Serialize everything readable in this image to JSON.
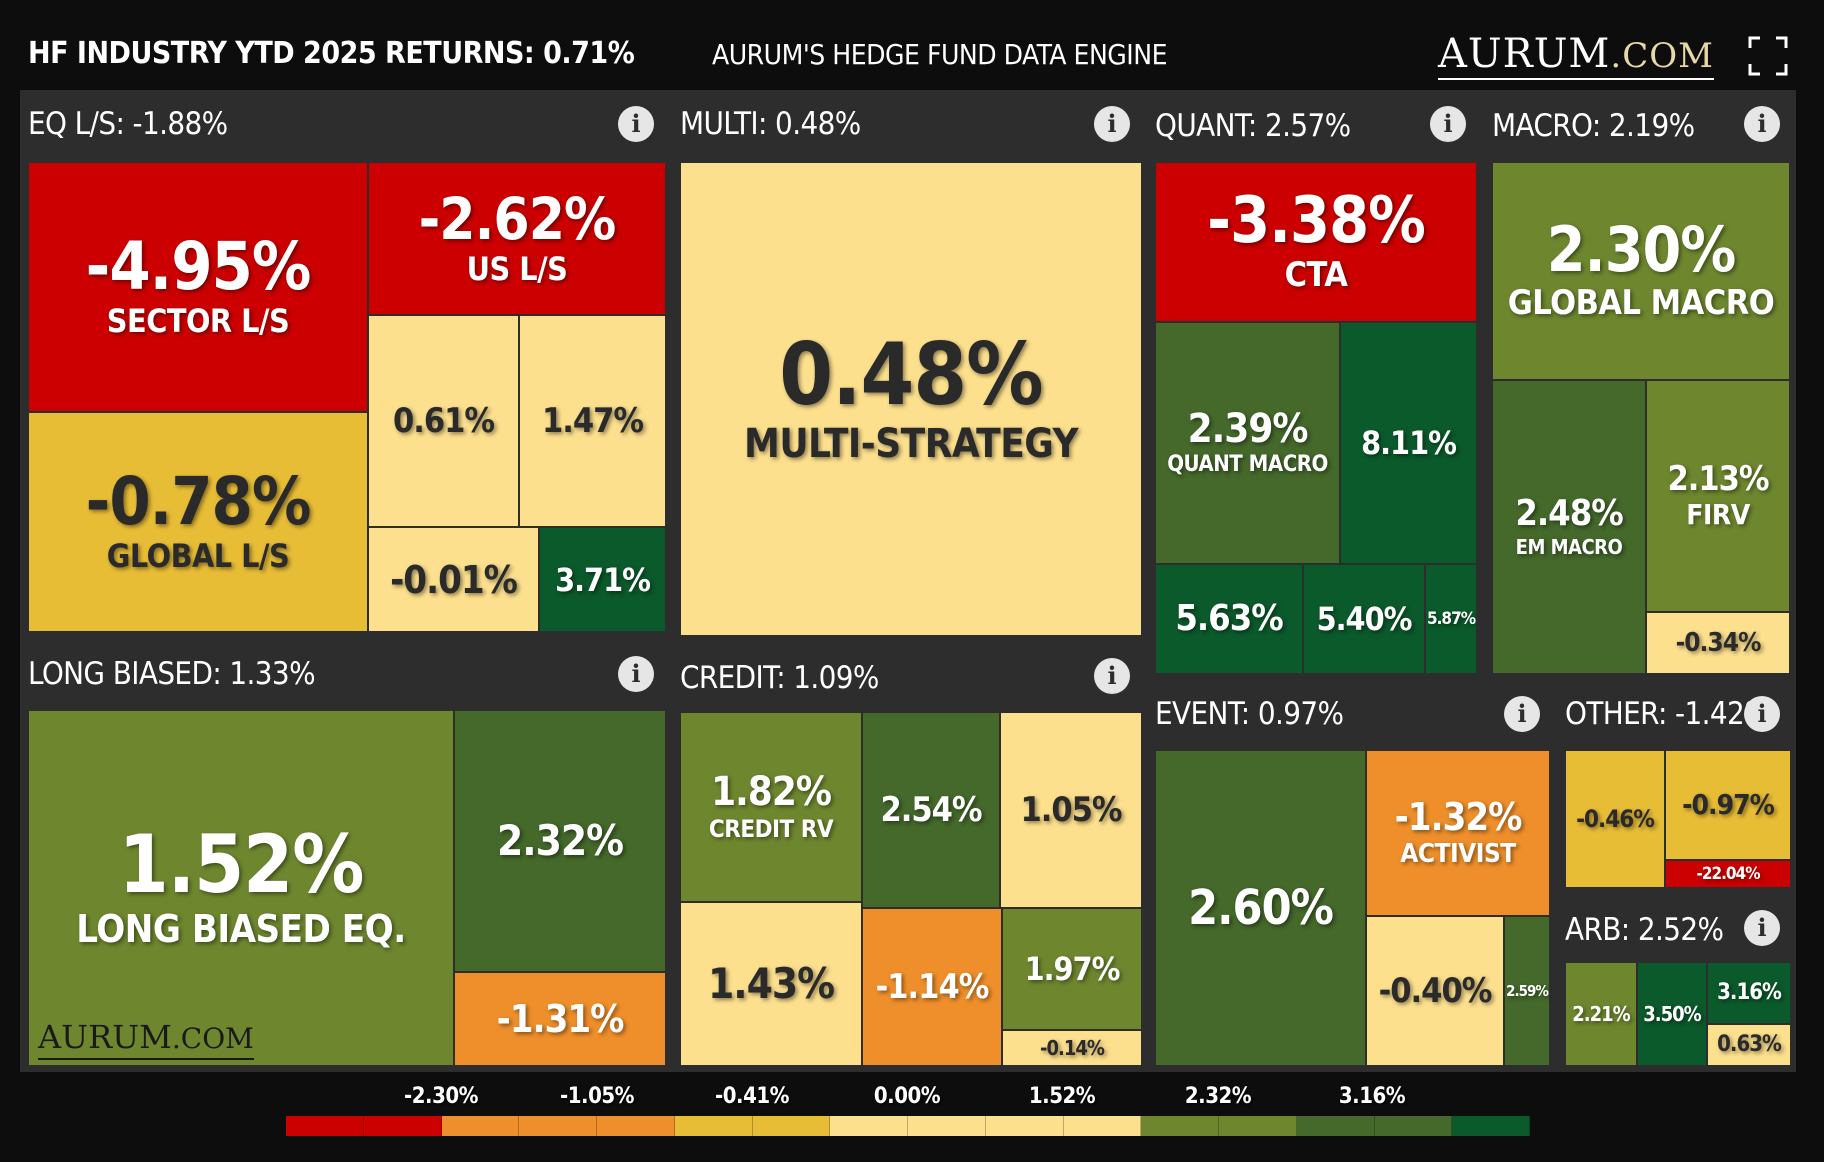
{
  "header": {
    "left_title": "HF INDUSTRY YTD 2025 RETURNS: 0.71%",
    "center_title": "AURUM'S HEDGE FUND DATA ENGINE",
    "logo_main": "AURUM",
    "logo_suffix": ".COM"
  },
  "watermark": {
    "main": "AURUM",
    "suffix": ".COM"
  },
  "colors": {
    "red": "#cc0000",
    "orange": "#ef8f2b",
    "gold": "#e8bd36",
    "pale": "#fde08e",
    "olive": "#6e872f",
    "green": "#44692b",
    "dark_green": "#0b5a2b",
    "panel": "#2d2d2d"
  },
  "chart_data": {
    "type": "treemap",
    "title": "HF INDUSTRY YTD 2025 RETURNS: 0.71%",
    "groups": [
      {
        "name": "EQ L/S",
        "return": "-1.88%",
        "tiles": [
          {
            "value": "-4.95%",
            "label": "SECTOR L/S"
          },
          {
            "value": "-2.62%",
            "label": "US L/S"
          },
          {
            "value": "0.61%",
            "label": ""
          },
          {
            "value": "1.47%",
            "label": ""
          },
          {
            "value": "-0.78%",
            "label": "GLOBAL L/S"
          },
          {
            "value": "-0.01%",
            "label": ""
          },
          {
            "value": "3.71%",
            "label": ""
          }
        ]
      },
      {
        "name": "MULTI",
        "return": "0.48%",
        "tiles": [
          {
            "value": "0.48%",
            "label": "MULTI-STRATEGY"
          }
        ]
      },
      {
        "name": "QUANT",
        "return": "2.57%",
        "tiles": [
          {
            "value": "-3.38%",
            "label": "CTA"
          },
          {
            "value": "2.39%",
            "label": "QUANT MACRO"
          },
          {
            "value": "8.11%",
            "label": ""
          },
          {
            "value": "5.63%",
            "label": ""
          },
          {
            "value": "5.40%",
            "label": ""
          },
          {
            "value": "5.87%",
            "label": ""
          }
        ]
      },
      {
        "name": "MACRO",
        "return": "2.19%",
        "tiles": [
          {
            "value": "2.30%",
            "label": "GLOBAL MACRO"
          },
          {
            "value": "2.48%",
            "label": "EM MACRO"
          },
          {
            "value": "2.13%",
            "label": "FIRV"
          },
          {
            "value": "-0.34%",
            "label": ""
          }
        ]
      },
      {
        "name": "LONG BIASED",
        "return": "1.33%",
        "tiles": [
          {
            "value": "1.52%",
            "label": "LONG BIASED EQ."
          },
          {
            "value": "2.32%",
            "label": ""
          },
          {
            "value": "-1.31%",
            "label": ""
          }
        ]
      },
      {
        "name": "CREDIT",
        "return": "1.09%",
        "tiles": [
          {
            "value": "1.82%",
            "label": "CREDIT RV"
          },
          {
            "value": "2.54%",
            "label": ""
          },
          {
            "value": "1.05%",
            "label": ""
          },
          {
            "value": "1.43%",
            "label": ""
          },
          {
            "value": "-1.14%",
            "label": ""
          },
          {
            "value": "1.97%",
            "label": ""
          },
          {
            "value": "-0.14%",
            "label": ""
          }
        ]
      },
      {
        "name": "EVENT",
        "return": "0.97%",
        "tiles": [
          {
            "value": "2.60%",
            "label": ""
          },
          {
            "value": "-1.32%",
            "label": "ACTIVIST"
          },
          {
            "value": "-0.40%",
            "label": ""
          },
          {
            "value": "2.59%",
            "label": ""
          }
        ]
      },
      {
        "name": "OTHER",
        "return": "-1.42%",
        "tiles": [
          {
            "value": "-0.46%",
            "label": ""
          },
          {
            "value": "-0.97%",
            "label": ""
          },
          {
            "value": "-22.04%",
            "label": ""
          }
        ]
      },
      {
        "name": "ARB",
        "return": "2.52%",
        "tiles": [
          {
            "value": "2.21%",
            "label": ""
          },
          {
            "value": "3.50%",
            "label": ""
          },
          {
            "value": "3.16%",
            "label": ""
          },
          {
            "value": "0.63%",
            "label": ""
          }
        ]
      }
    ],
    "legend": {
      "ticks": [
        "-2.30%",
        "-1.05%",
        "-0.41%",
        "0.00%",
        "1.52%",
        "2.32%",
        "3.16%"
      ],
      "scale_colors": [
        "#cc0000",
        "#cc0000",
        "#ef8f2b",
        "#ef8f2b",
        "#ef8f2b",
        "#e8bd36",
        "#e8bd36",
        "#fde08e",
        "#fde08e",
        "#fde08e",
        "#fde08e",
        "#6e872f",
        "#6e872f",
        "#44692b",
        "#44692b",
        "#0b5a2b"
      ]
    }
  }
}
